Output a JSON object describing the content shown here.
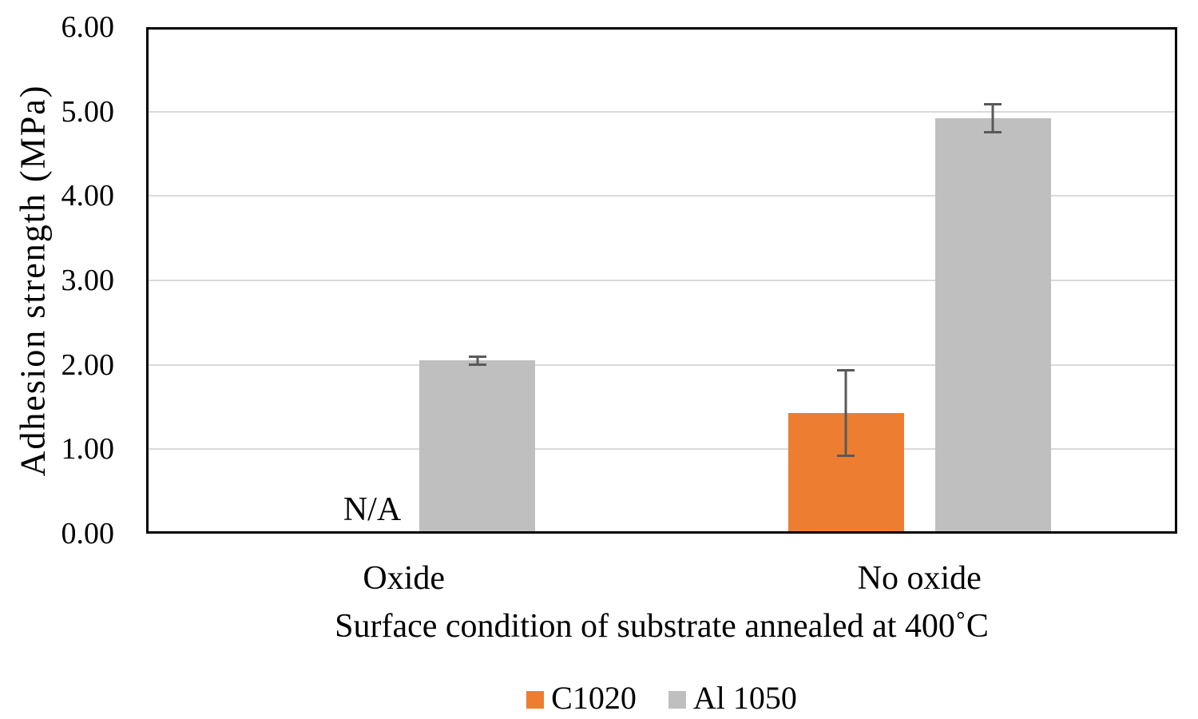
{
  "chart_data": {
    "type": "bar",
    "categories": [
      "Oxide",
      "No oxide"
    ],
    "series": [
      {
        "name": "C1020",
        "color": "#ED7D31",
        "values": [
          null,
          1.43
        ],
        "errors": [
          null,
          0.52
        ]
      },
      {
        "name": "Al 1050",
        "color": "#BFBFBF",
        "values": [
          2.05,
          4.92
        ],
        "errors": [
          0.06,
          0.18
        ]
      }
    ],
    "missing_value_label": "N/A",
    "missing_value_series": "C1020",
    "missing_value_category": "Oxide",
    "xlabel": "Surface condition of substrate annealed at 400˚C",
    "ylabel": "Adhesion strength (MPa)",
    "ylim": [
      0,
      6
    ],
    "yticks": [
      0,
      1,
      2,
      3,
      4,
      5,
      6
    ],
    "ytick_labels": [
      "0.00",
      "1.00",
      "2.00",
      "3.00",
      "4.00",
      "5.00",
      "6.00"
    ],
    "grid": true,
    "legend_position": "bottom",
    "colors": {
      "error_bar": "#595959",
      "gridline": "#D9D9D9",
      "axis_border": "#000000",
      "text": "#000000",
      "background": "#FFFFFF"
    }
  }
}
